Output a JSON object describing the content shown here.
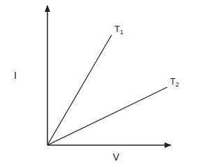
{
  "chart_data": {
    "type": "line",
    "x_label": "V",
    "y_label": "I",
    "xlim": [
      0,
      10
    ],
    "ylim": [
      0,
      10
    ],
    "tick_labels": false,
    "grid": false,
    "series": [
      {
        "name": "T1",
        "color": "#222222",
        "x": [
          0,
          5.2
        ],
        "values": [
          0,
          7.9
        ]
      },
      {
        "name": "T2",
        "color": "#222222",
        "x": [
          0,
          9.7
        ],
        "values": [
          0,
          4.15
        ]
      }
    ]
  }
}
